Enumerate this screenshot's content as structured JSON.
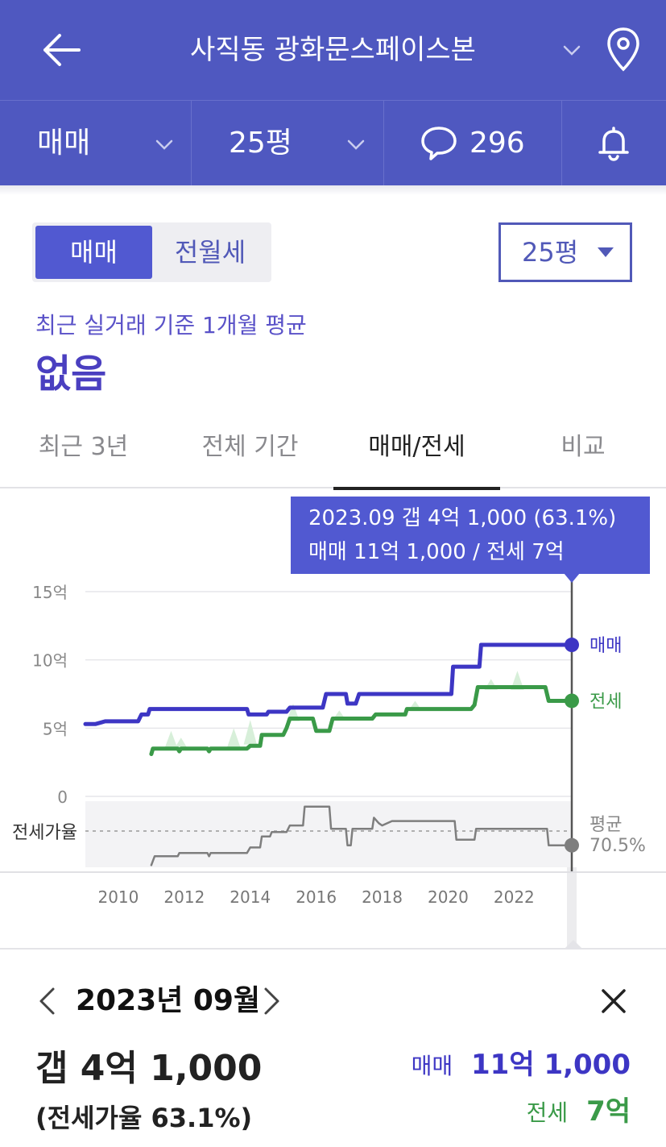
{
  "header": {
    "title": "사직동 광화문스페이스본"
  },
  "filters": {
    "deal_type": "매매",
    "size": "25평",
    "comment_count": "296"
  },
  "segment": {
    "sale": "매매",
    "rent": "전월세"
  },
  "size_select": {
    "value": "25평"
  },
  "summary": {
    "caption": "최근 실거래 기준 1개월 평균",
    "value": "없음"
  },
  "tabs": [
    {
      "label": "최근 3년"
    },
    {
      "label": "전체 기간"
    },
    {
      "label": "매매/전세"
    },
    {
      "label": "비교"
    }
  ],
  "tooltip": {
    "line1": "2023.09  갭 4억 1,000 (63.1%)",
    "line2": "매매 11억 1,000 / 전세 7억"
  },
  "detail": {
    "month": "2023년 09월",
    "gap": "갭 4억 1,000",
    "ratio": "(전세가율 63.1%)",
    "sale_label": "매매",
    "sale_value": "11억 1,000",
    "rent_label": "전세",
    "rent_value": "7억"
  },
  "colors": {
    "accent": "#4f58c0",
    "sale": "#3d36c4",
    "rent": "#3a9a48",
    "ratio": "#7e7e7e"
  },
  "chart_data": {
    "type": "line",
    "y_ticks": [
      "15억",
      "10억",
      "5억",
      "0"
    ],
    "y_range": [
      0,
      15
    ],
    "x_ticks": [
      "2010",
      "2012",
      "2014",
      "2016",
      "2018",
      "2020",
      "2022"
    ],
    "x_range": [
      2009.0,
      2023.75
    ],
    "ratio_label": "전세가율",
    "avg_label": "평균",
    "avg_value": "70.5%",
    "series": [
      {
        "name": "매매",
        "color": "#3d36c4",
        "points": [
          [
            2009.0,
            5.3
          ],
          [
            2009.3,
            5.3
          ],
          [
            2009.6,
            5.5
          ],
          [
            2010.5,
            5.5
          ],
          [
            2010.6,
            5.5
          ],
          [
            2010.7,
            6.0
          ],
          [
            2010.9,
            6.0
          ],
          [
            2010.95,
            6.4
          ],
          [
            2013.9,
            6.4
          ],
          [
            2013.95,
            6.0
          ],
          [
            2014.5,
            6.0
          ],
          [
            2014.55,
            6.2
          ],
          [
            2015.1,
            6.2
          ],
          [
            2015.2,
            6.5
          ],
          [
            2016.2,
            6.5
          ],
          [
            2016.3,
            7.5
          ],
          [
            2016.9,
            7.5
          ],
          [
            2016.95,
            6.8
          ],
          [
            2017.2,
            6.8
          ],
          [
            2017.3,
            7.5
          ],
          [
            2020.1,
            7.5
          ],
          [
            2020.15,
            9.5
          ],
          [
            2020.95,
            9.5
          ],
          [
            2021.0,
            11.1
          ],
          [
            2023.75,
            11.1
          ]
        ]
      },
      {
        "name": "전세",
        "color": "#3a9a48",
        "points": [
          [
            2011.0,
            3.1
          ],
          [
            2011.05,
            3.5
          ],
          [
            2011.8,
            3.5
          ],
          [
            2011.85,
            3.3
          ],
          [
            2011.9,
            3.5
          ],
          [
            2012.7,
            3.5
          ],
          [
            2012.75,
            3.3
          ],
          [
            2012.8,
            3.5
          ],
          [
            2013.9,
            3.5
          ],
          [
            2014.0,
            3.7
          ],
          [
            2014.3,
            3.7
          ],
          [
            2014.35,
            4.5
          ],
          [
            2015.0,
            4.5
          ],
          [
            2015.1,
            5.0
          ],
          [
            2015.2,
            5.7
          ],
          [
            2015.9,
            5.7
          ],
          [
            2016.0,
            4.8
          ],
          [
            2016.4,
            4.8
          ],
          [
            2016.5,
            5.7
          ],
          [
            2017.7,
            5.7
          ],
          [
            2017.8,
            6.0
          ],
          [
            2018.7,
            6.0
          ],
          [
            2018.75,
            6.4
          ],
          [
            2020.7,
            6.4
          ],
          [
            2020.8,
            6.7
          ],
          [
            2020.9,
            8.0
          ],
          [
            2022.95,
            8.0
          ],
          [
            2023.05,
            7.0
          ],
          [
            2023.75,
            7.0
          ]
        ]
      },
      {
        "name": "전세가율",
        "color": "#7e7e7e",
        "band": [
          20,
          80
        ],
        "points": [
          [
            2011.0,
            22
          ],
          [
            2011.1,
            30
          ],
          [
            2011.8,
            30
          ],
          [
            2011.85,
            33
          ],
          [
            2012.7,
            33
          ],
          [
            2012.75,
            30
          ],
          [
            2012.8,
            33
          ],
          [
            2013.9,
            33
          ],
          [
            2014.0,
            38
          ],
          [
            2014.3,
            38
          ],
          [
            2014.35,
            48
          ],
          [
            2014.6,
            48
          ],
          [
            2014.65,
            52
          ],
          [
            2015.1,
            52
          ],
          [
            2015.2,
            58
          ],
          [
            2015.6,
            58
          ],
          [
            2015.65,
            75
          ],
          [
            2016.4,
            75
          ],
          [
            2016.45,
            55
          ],
          [
            2016.9,
            55
          ],
          [
            2016.95,
            40
          ],
          [
            2017.05,
            40
          ],
          [
            2017.1,
            55
          ],
          [
            2017.7,
            55
          ],
          [
            2017.75,
            65
          ],
          [
            2017.9,
            60
          ],
          [
            2018.0,
            58
          ],
          [
            2018.3,
            62
          ],
          [
            2020.2,
            62
          ],
          [
            2020.25,
            45
          ],
          [
            2020.8,
            45
          ],
          [
            2020.85,
            55
          ],
          [
            2023.0,
            55
          ],
          [
            2023.05,
            40
          ],
          [
            2023.75,
            40
          ]
        ]
      }
    ]
  }
}
